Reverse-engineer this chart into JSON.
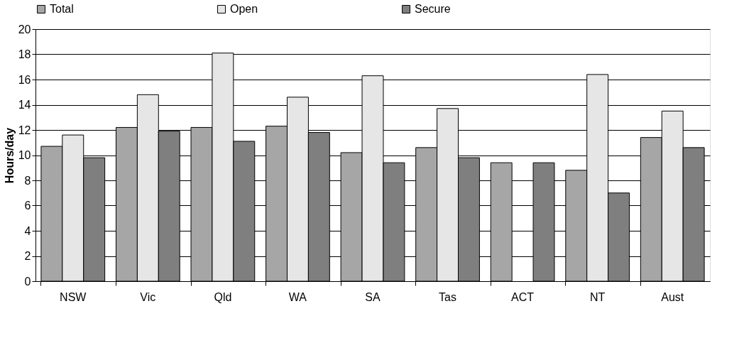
{
  "chart_data": {
    "type": "bar",
    "ylabel": "Hours/day",
    "categories": [
      "NSW",
      "Vic",
      "Qld",
      "WA",
      "SA",
      "Tas",
      "ACT",
      "NT",
      "Aust"
    ],
    "series": [
      {
        "name": "Total",
        "color": "#a6a6a6",
        "values": [
          10.7,
          12.2,
          12.2,
          12.3,
          10.2,
          10.6,
          9.4,
          8.8,
          11.4
        ]
      },
      {
        "name": "Open",
        "color": "#e6e6e6",
        "values": [
          11.6,
          14.8,
          18.1,
          14.6,
          16.3,
          13.7,
          null,
          16.4,
          13.5
        ]
      },
      {
        "name": "Secure",
        "color": "#7f7f7f",
        "values": [
          9.8,
          11.9,
          11.1,
          11.8,
          9.4,
          9.8,
          9.4,
          7.0,
          10.6
        ]
      }
    ],
    "ylim": [
      0,
      20
    ],
    "yticks": [
      0,
      2,
      4,
      6,
      8,
      10,
      12,
      14,
      16,
      18,
      20
    ],
    "grid": "y",
    "legend": "top"
  }
}
